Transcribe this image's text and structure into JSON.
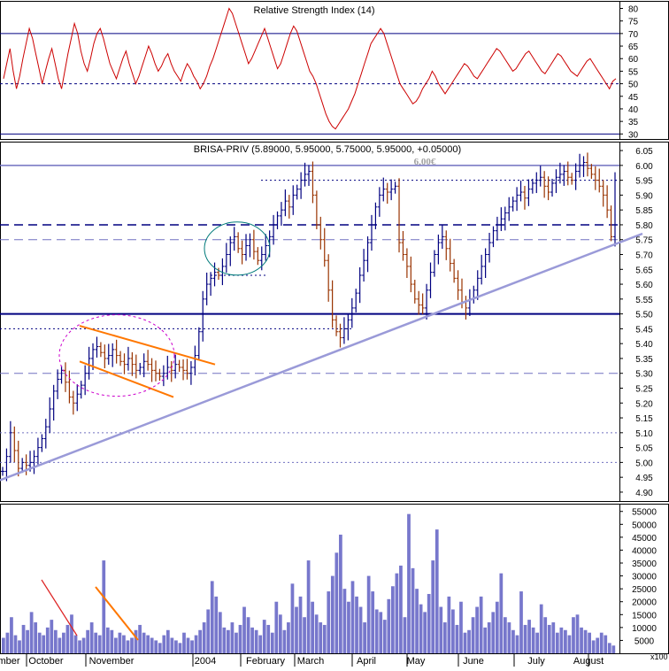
{
  "rsi_panel": {
    "title": "Relative Strength Index (14)",
    "ticks": [
      30,
      35,
      40,
      45,
      50,
      55,
      60,
      65,
      70,
      75,
      80
    ],
    "ylim": [
      28,
      83
    ],
    "upper_line": 70,
    "lower_line": 30,
    "mid_line": 50,
    "line_color": "#cc0000"
  },
  "price_panel": {
    "title": "BRISA-PRIV (5.89000, 5.95000, 5.75000, 5.95000, +0.05000)",
    "watermark": "6,00€",
    "ticks": [
      4.9,
      4.95,
      5.0,
      5.05,
      5.1,
      5.15,
      5.2,
      5.25,
      5.3,
      5.35,
      5.4,
      5.45,
      5.5,
      5.55,
      5.6,
      5.65,
      5.7,
      5.75,
      5.8,
      5.85,
      5.9,
      5.95,
      6.0,
      6.05
    ],
    "tick_labels": [
      "4.90",
      "4.95",
      "5.00",
      "5.05",
      "5.10",
      "5.15",
      "5.20",
      "5.25",
      "5.30",
      "5.35",
      "5.40",
      "5.45",
      "5.50",
      "5.55",
      "5.60",
      "5.65",
      "5.70",
      "5.75",
      "5.80",
      "5.85",
      "5.90",
      "5.95",
      "6.00",
      "6.05"
    ],
    "ylim": [
      4.87,
      6.08
    ],
    "up_color": "#000080",
    "down_color": "#993300"
  },
  "volume_panel": {
    "ticks": [
      5000,
      10000,
      15000,
      20000,
      25000,
      30000,
      35000,
      40000,
      45000,
      50000,
      55000
    ],
    "tick_labels": [
      "5000",
      "10000",
      "15000",
      "20000",
      "25000",
      "30000",
      "35000",
      "40000",
      "45000",
      "50000",
      "55000"
    ],
    "ylim": [
      0,
      58000
    ],
    "multiplier_label": "x100",
    "bar_color": "#7777cc"
  },
  "x_axis": {
    "month_labels": [
      "mber",
      "October",
      "November",
      "2004",
      "February",
      "March",
      "April",
      "May",
      "June",
      "July",
      "August"
    ]
  },
  "chart_data": [
    {
      "type": "line",
      "title": "Relative Strength Index (14)",
      "series": [
        {
          "name": "Relative Strength Index (14)",
          "color": "#cc0000",
          "values": [
            52,
            58,
            64,
            55,
            48,
            53,
            60,
            66,
            72,
            68,
            62,
            56,
            50,
            55,
            60,
            64,
            58,
            52,
            48,
            55,
            62,
            68,
            74,
            70,
            63,
            58,
            55,
            60,
            66,
            70,
            72,
            68,
            63,
            58,
            55,
            52,
            56,
            60,
            63,
            58,
            54,
            50,
            53,
            57,
            61,
            65,
            62,
            58,
            55,
            57,
            60,
            62,
            58,
            55,
            53,
            51,
            55,
            58,
            56,
            53,
            51,
            48,
            50,
            53,
            57,
            60,
            64,
            68,
            72,
            76,
            80,
            78,
            74,
            70,
            66,
            62,
            58,
            60,
            63,
            66,
            69,
            72,
            68,
            64,
            60,
            56,
            58,
            62,
            66,
            70,
            73,
            71,
            67,
            63,
            59,
            55,
            53,
            50,
            46,
            42,
            38,
            35,
            33,
            32,
            34,
            36,
            38,
            40,
            43,
            46,
            50,
            54,
            58,
            62,
            66,
            68,
            70,
            72,
            70,
            66,
            62,
            58,
            54,
            50,
            48,
            46,
            44,
            42,
            43,
            45,
            48,
            50,
            52,
            55,
            53,
            50,
            48,
            46,
            48,
            50,
            52,
            54,
            56,
            58,
            57,
            55,
            53,
            52,
            54,
            56,
            58,
            60,
            62,
            64,
            63,
            61,
            59,
            57,
            55,
            56,
            58,
            60,
            62,
            63,
            61,
            59,
            57,
            55,
            54,
            56,
            58,
            60,
            62,
            61,
            59,
            57,
            55,
            54,
            53,
            55,
            57,
            59,
            60,
            58,
            56,
            54,
            52,
            50,
            48,
            51,
            52
          ]
        }
      ]
    },
    {
      "type": "line",
      "title": "BRISA-PRIV (5.89000, 5.95000, 5.75000, 5.95000, +0.05000)",
      "ylim": [
        4.87,
        6.08
      ],
      "series": [
        {
          "name": "BRISA-PRIV",
          "values": [
            4.97,
            5.02,
            5.1,
            5.04,
            4.98,
            5.0,
            4.99,
            5.0,
            5.02,
            5.05,
            5.08,
            5.12,
            5.18,
            5.24,
            5.28,
            5.31,
            5.27,
            5.22,
            5.2,
            5.23,
            5.26,
            5.3,
            5.35,
            5.38,
            5.39,
            5.37,
            5.35,
            5.36,
            5.38,
            5.36,
            5.34,
            5.33,
            5.35,
            5.33,
            5.31,
            5.32,
            5.34,
            5.33,
            5.31,
            5.3,
            5.29,
            5.3,
            5.32,
            5.31,
            5.33,
            5.32,
            5.31,
            5.3,
            5.32,
            5.36,
            5.44,
            5.55,
            5.6,
            5.62,
            5.64,
            5.63,
            5.66,
            5.7,
            5.74,
            5.76,
            5.72,
            5.7,
            5.73,
            5.75,
            5.71,
            5.68,
            5.7,
            5.73,
            5.76,
            5.8,
            5.83,
            5.85,
            5.88,
            5.86,
            5.9,
            5.92,
            5.95,
            5.97,
            5.98,
            5.9,
            5.8,
            5.75,
            5.68,
            5.58,
            5.48,
            5.44,
            5.42,
            5.45,
            5.48,
            5.52,
            5.57,
            5.63,
            5.68,
            5.74,
            5.8,
            5.86,
            5.9,
            5.92,
            5.91,
            5.92,
            5.93,
            5.74,
            5.7,
            5.66,
            5.6,
            5.55,
            5.53,
            5.52,
            5.58,
            5.64,
            5.7,
            5.74,
            5.76,
            5.72,
            5.67,
            5.62,
            5.58,
            5.54,
            5.52,
            5.55,
            5.58,
            5.62,
            5.66,
            5.7,
            5.74,
            5.78,
            5.8,
            5.82,
            5.84,
            5.86,
            5.88,
            5.9,
            5.91,
            5.89,
            5.92,
            5.94,
            5.95,
            5.96,
            5.93,
            5.91,
            5.94,
            5.96,
            5.97,
            5.98,
            5.96,
            5.95,
            5.98,
            6.0,
            6.01,
            5.99,
            5.97,
            5.95,
            5.93,
            5.9,
            5.85,
            5.76,
            5.95
          ]
        }
      ]
    },
    {
      "type": "bar",
      "title": "",
      "series": [
        {
          "name": "",
          "color": "#7777cc",
          "values": [
            6000,
            8000,
            14000,
            7000,
            5000,
            11000,
            9000,
            16000,
            12000,
            8000,
            7000,
            10000,
            13000,
            9000,
            6000,
            8000,
            11000,
            15000,
            7000,
            5000,
            6000,
            9000,
            12000,
            8000,
            7000,
            36000,
            10000,
            9000,
            6000,
            8000,
            7000,
            5000,
            6000,
            9000,
            11000,
            8000,
            7000,
            6000,
            5000,
            4000,
            7000,
            9000,
            6000,
            5000,
            4000,
            8000,
            6000,
            5000,
            7000,
            9000,
            12000,
            17000,
            28000,
            22000,
            16000,
            10000,
            9000,
            12000,
            8000,
            11000,
            18000,
            14000,
            10000,
            9000,
            7000,
            13000,
            11000,
            8000,
            20000,
            15000,
            9000,
            12000,
            27000,
            18000,
            22000,
            14000,
            36000,
            20000,
            15000,
            12000,
            11000,
            24000,
            30000,
            39000,
            46000,
            25000,
            20000,
            28000,
            22000,
            18000,
            12000,
            30000,
            24000,
            17000,
            16000,
            13000,
            21000,
            26000,
            31000,
            34000,
            14000,
            54000,
            33000,
            25000,
            19000,
            16000,
            23000,
            36000,
            48000,
            18000,
            12000,
            22000,
            17000,
            11000,
            20000,
            8000,
            9000,
            14000,
            18000,
            22000,
            10000,
            12000,
            16000,
            20000,
            31000,
            14000,
            12000,
            9000,
            7000,
            24000,
            11000,
            13000,
            10000,
            8000,
            19000,
            14000,
            11000,
            12000,
            8000,
            10000,
            9000,
            7000,
            14000,
            15000,
            10000,
            9000,
            8000,
            5000,
            6000,
            8000,
            7000,
            4000,
            3000
          ]
        }
      ]
    }
  ]
}
